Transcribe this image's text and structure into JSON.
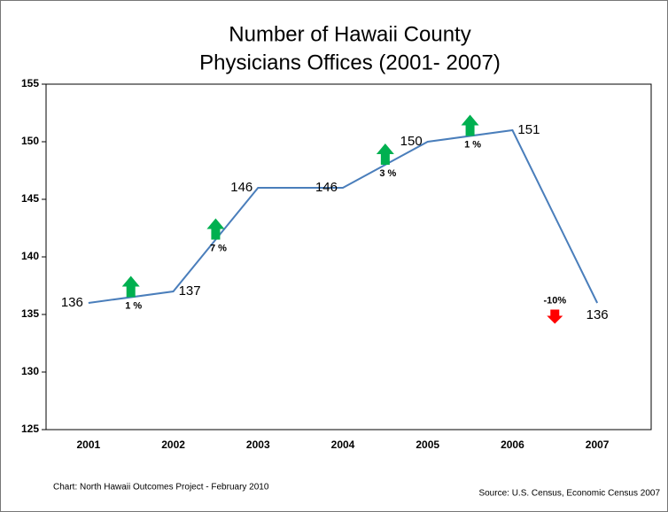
{
  "chart_data": {
    "type": "line",
    "title": [
      "Number of Hawaii County",
      "Physicians Offices (2001- 2007)"
    ],
    "categories": [
      "2001",
      "2002",
      "2003",
      "2004",
      "2005",
      "2006",
      "2007"
    ],
    "series": [
      {
        "name": "Physicians Offices",
        "color": "#4a7ebb",
        "values": [
          136,
          137,
          146,
          146,
          150,
          151,
          136
        ]
      }
    ],
    "ylim": [
      125,
      155
    ],
    "yticks": [
      125,
      130,
      135,
      140,
      145,
      150,
      155
    ],
    "annotations": [
      "1 %",
      "7 %",
      null,
      "3 %",
      "1 %",
      "-10%"
    ],
    "notes": [
      "Chart: North Hawaii Outcomes Project - February 2010",
      "Source: U.S. Census, Economic Census 2007"
    ]
  }
}
